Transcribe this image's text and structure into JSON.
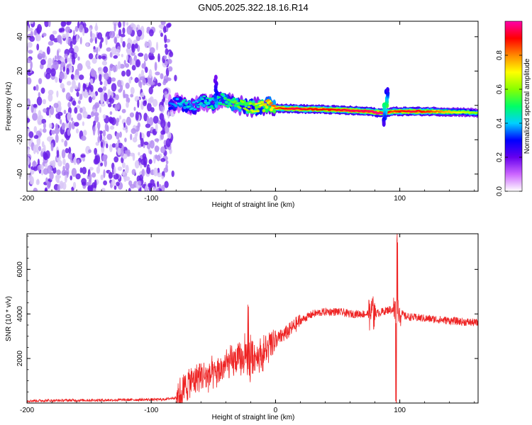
{
  "title": "GN05.2025.322.18.16.R14",
  "colors": {
    "signal_line": "#ee2222",
    "axis": "#000000",
    "noise_purple": "#6a1ee8",
    "noise_light": "#d9c8f7"
  },
  "chart_data": [
    {
      "type": "heatmap",
      "name": "spectrogram",
      "xlabel": "Height of straight line (km)",
      "ylabel": "Frequency (Hz)",
      "xlim": [
        -200,
        163
      ],
      "ylim": [
        -50,
        49
      ],
      "xticks": [
        -200,
        -100,
        0,
        100
      ],
      "yticks": [
        -40,
        -20,
        0,
        20,
        40
      ],
      "colorbar": {
        "label": "Normalized spectral amplitude",
        "range": [
          0.0,
          1.0
        ],
        "ticks": [
          0.0,
          0.2,
          0.4,
          0.6,
          0.8
        ],
        "colormap": [
          "#ffffff",
          "#cc66ff",
          "#6600ee",
          "#0000ff",
          "#00d0ff",
          "#00ff66",
          "#88ff00",
          "#ffff00",
          "#ff8800",
          "#ff0000",
          "#ff00aa"
        ]
      },
      "noise_region_x": [
        -200,
        -84
      ],
      "signal_band": [
        {
          "x": -85,
          "y": 0.5,
          "amp": 0.35
        },
        {
          "x": -78,
          "y": 1.5,
          "amp": 0.4
        },
        {
          "x": -72,
          "y": 0.0,
          "amp": 0.45
        },
        {
          "x": -65,
          "y": -1.0,
          "amp": 0.4
        },
        {
          "x": -58,
          "y": 2.5,
          "amp": 0.45
        },
        {
          "x": -50,
          "y": 1.0,
          "amp": 0.5
        },
        {
          "x": -43,
          "y": 4.0,
          "amp": 0.5
        },
        {
          "x": -36,
          "y": 1.0,
          "amp": 0.55
        },
        {
          "x": -28,
          "y": 0.0,
          "amp": 0.6
        },
        {
          "x": -20,
          "y": -1.0,
          "amp": 0.65
        },
        {
          "x": -12,
          "y": -1.0,
          "amp": 0.7
        },
        {
          "x": -5,
          "y": 0.5,
          "amp": 0.8
        },
        {
          "x": 0,
          "y": -1.5,
          "amp": 0.85
        },
        {
          "x": 15,
          "y": -2.0,
          "amp": 0.95
        },
        {
          "x": 30,
          "y": -2.2,
          "amp": 0.9
        },
        {
          "x": 45,
          "y": -2.5,
          "amp": 0.9
        },
        {
          "x": 60,
          "y": -3.0,
          "amp": 0.95
        },
        {
          "x": 75,
          "y": -3.5,
          "amp": 0.95
        },
        {
          "x": 85,
          "y": -4.5,
          "amp": 1.0
        },
        {
          "x": 95,
          "y": -3.5,
          "amp": 0.85
        },
        {
          "x": 110,
          "y": -3.5,
          "amp": 0.95
        },
        {
          "x": 125,
          "y": -3.5,
          "amp": 0.85
        },
        {
          "x": 140,
          "y": -3.8,
          "amp": 0.75
        },
        {
          "x": 155,
          "y": -4.0,
          "amp": 0.65
        },
        {
          "x": 163,
          "y": -4.5,
          "amp": 0.6
        }
      ],
      "features": [
        {
          "x": -48,
          "y": 18,
          "amp": 0.4
        },
        {
          "x": 90,
          "y": 10,
          "amp": 0.55
        },
        {
          "x": 88,
          "y": -12,
          "amp": 0.5
        }
      ]
    },
    {
      "type": "line",
      "name": "snr",
      "xlabel": "Height of straight line (km)",
      "ylabel": "SNR (10 * v/v)",
      "xlim": [
        -200,
        163
      ],
      "ylim": [
        0,
        7600
      ],
      "xticks": [
        -200,
        -100,
        0,
        100
      ],
      "yticks": [
        2000,
        4000,
        6000
      ],
      "series": [
        {
          "name": "SNR",
          "x": [
            -200,
            -170,
            -140,
            -110,
            -90,
            -80,
            -75,
            -70,
            -62,
            -55,
            -48,
            -40,
            -32,
            -25,
            -18,
            -10,
            -5,
            0,
            10,
            20,
            30,
            40,
            50,
            60,
            70,
            80,
            86,
            92,
            97,
            100,
            104,
            110,
            120,
            130,
            140,
            150,
            163
          ],
          "values": [
            100,
            120,
            130,
            150,
            160,
            250,
            500,
            900,
            1200,
            1200,
            1300,
            1700,
            1900,
            2000,
            2100,
            2200,
            2500,
            2800,
            3200,
            3700,
            4000,
            4100,
            4100,
            4000,
            4000,
            4000,
            4100,
            4200,
            4150,
            4100,
            3900,
            3850,
            3800,
            3750,
            3700,
            3650,
            3600
          ]
        }
      ],
      "spikes": [
        {
          "x": -22,
          "peak": 4600
        },
        {
          "x": 78,
          "peak": 5300
        },
        {
          "x": 98,
          "peak": 7600
        },
        {
          "x": 97,
          "trough": 0
        }
      ]
    }
  ]
}
